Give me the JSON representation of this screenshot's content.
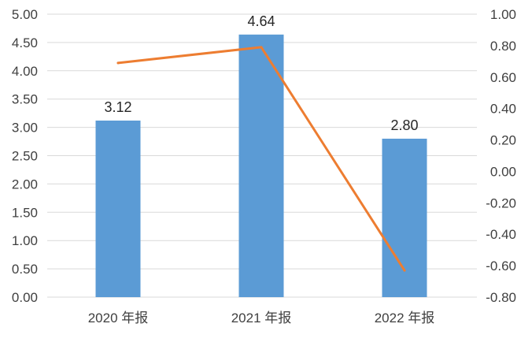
{
  "chart_data": {
    "type": "bar",
    "categories": [
      "2020 年报",
      "2021 年报",
      "2022 年报"
    ],
    "series": [
      {
        "type": "bar",
        "axis": "left",
        "values": [
          3.12,
          4.64,
          2.8
        ],
        "data_labels": [
          "3.12",
          "4.64",
          "2.80"
        ],
        "color": "#5b9bd5"
      },
      {
        "type": "line",
        "axis": "right",
        "values": [
          0.69,
          0.79,
          -0.63
        ],
        "color": "#ed7d31"
      }
    ],
    "y_left": {
      "ylim": [
        0,
        5
      ],
      "ticks": [
        "0.00",
        "0.50",
        "1.00",
        "1.50",
        "2.00",
        "2.50",
        "3.00",
        "3.50",
        "4.00",
        "4.50",
        "5.00"
      ]
    },
    "y_right": {
      "ylim": [
        -0.8,
        1.0
      ],
      "ticks": [
        "-0.80",
        "-0.60",
        "-0.40",
        "-0.20",
        "0.00",
        "0.20",
        "0.40",
        "0.60",
        "0.80",
        "1.00"
      ]
    },
    "grid": true,
    "legend": "none",
    "colors": {
      "gridline": "#d9d9d9",
      "text": "#404040"
    }
  }
}
